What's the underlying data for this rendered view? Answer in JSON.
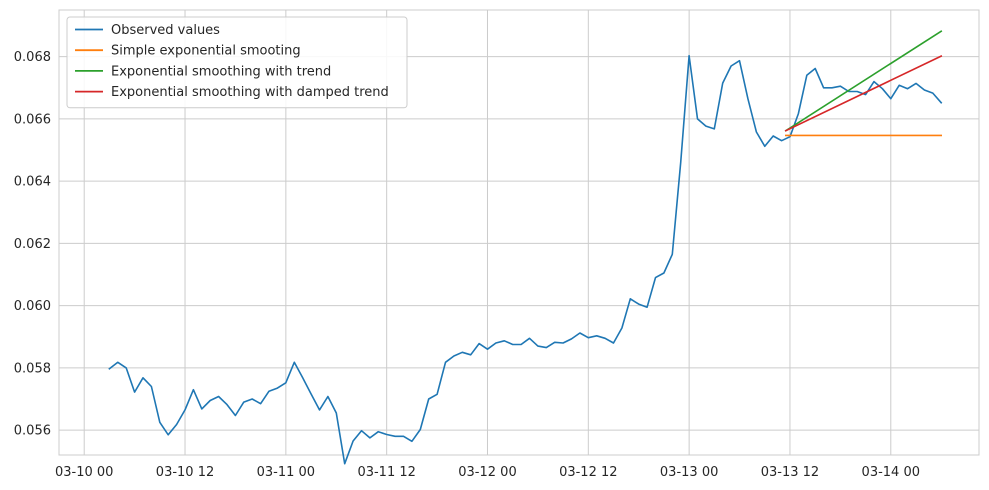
{
  "chart_data": {
    "type": "line",
    "title": "",
    "xlabel": "",
    "ylabel": "",
    "grid": true,
    "legend_position": "upper-left",
    "x_unit_note": "hours",
    "xlim": [
      -6,
      213
    ],
    "ylim": [
      0.0552,
      0.0695
    ],
    "x_ticks": [
      {
        "value": 0,
        "label": "03-10 00"
      },
      {
        "value": 24,
        "label": "03-10 12"
      },
      {
        "value": 48,
        "label": "03-11 00"
      },
      {
        "value": 72,
        "label": "03-11 12"
      },
      {
        "value": 96,
        "label": "03-12 00"
      },
      {
        "value": 120,
        "label": "03-12 12"
      },
      {
        "value": 144,
        "label": "03-13 00"
      },
      {
        "value": 168,
        "label": "03-13 12"
      },
      {
        "value": 192,
        "label": "03-14 00"
      }
    ],
    "y_ticks": [
      {
        "value": 0.056,
        "label": "0.056"
      },
      {
        "value": 0.058,
        "label": "0.058"
      },
      {
        "value": 0.06,
        "label": "0.060"
      },
      {
        "value": 0.062,
        "label": "0.062"
      },
      {
        "value": 0.064,
        "label": "0.064"
      },
      {
        "value": 0.066,
        "label": "0.066"
      },
      {
        "value": 0.068,
        "label": "0.068"
      }
    ],
    "series": [
      {
        "name": "Observed values",
        "color": "#1f77b4",
        "points": [
          [
            6,
            0.05797
          ],
          [
            8,
            0.05818
          ],
          [
            10,
            0.058
          ],
          [
            12,
            0.05722
          ],
          [
            14,
            0.05768
          ],
          [
            16,
            0.0574
          ],
          [
            18,
            0.05625
          ],
          [
            20,
            0.05585
          ],
          [
            22,
            0.05618
          ],
          [
            24,
            0.05665
          ],
          [
            26,
            0.0573
          ],
          [
            28,
            0.05668
          ],
          [
            30,
            0.05695
          ],
          [
            32,
            0.05708
          ],
          [
            34,
            0.05682
          ],
          [
            36,
            0.05647
          ],
          [
            38,
            0.0569
          ],
          [
            40,
            0.057
          ],
          [
            42,
            0.05685
          ],
          [
            44,
            0.05725
          ],
          [
            46,
            0.05735
          ],
          [
            48,
            0.05752
          ],
          [
            50,
            0.05818
          ],
          [
            52,
            0.05768
          ],
          [
            54,
            0.05716
          ],
          [
            56,
            0.05665
          ],
          [
            58,
            0.05708
          ],
          [
            60,
            0.05655
          ],
          [
            62,
            0.05492
          ],
          [
            64,
            0.05565
          ],
          [
            66,
            0.05598
          ],
          [
            68,
            0.05575
          ],
          [
            70,
            0.05595
          ],
          [
            72,
            0.05586
          ],
          [
            74,
            0.0558
          ],
          [
            76,
            0.0558
          ],
          [
            78,
            0.05564
          ],
          [
            80,
            0.05602
          ],
          [
            82,
            0.057
          ],
          [
            84,
            0.05715
          ],
          [
            86,
            0.05818
          ],
          [
            88,
            0.05838
          ],
          [
            90,
            0.0585
          ],
          [
            92,
            0.05842
          ],
          [
            94,
            0.05878
          ],
          [
            96,
            0.0586
          ],
          [
            98,
            0.0588
          ],
          [
            100,
            0.05887
          ],
          [
            102,
            0.05875
          ],
          [
            104,
            0.05875
          ],
          [
            106,
            0.05895
          ],
          [
            108,
            0.0587
          ],
          [
            110,
            0.05865
          ],
          [
            112,
            0.05882
          ],
          [
            114,
            0.0588
          ],
          [
            116,
            0.05893
          ],
          [
            118,
            0.05912
          ],
          [
            120,
            0.05897
          ],
          [
            122,
            0.05903
          ],
          [
            124,
            0.05895
          ],
          [
            126,
            0.0588
          ],
          [
            128,
            0.05928
          ],
          [
            130,
            0.06022
          ],
          [
            132,
            0.06005
          ],
          [
            134,
            0.05995
          ],
          [
            136,
            0.0609
          ],
          [
            138,
            0.06105
          ],
          [
            140,
            0.06165
          ],
          [
            142,
            0.0646
          ],
          [
            144,
            0.06803
          ],
          [
            146,
            0.066
          ],
          [
            148,
            0.06577
          ],
          [
            150,
            0.06568
          ],
          [
            152,
            0.06715
          ],
          [
            154,
            0.0677
          ],
          [
            156,
            0.06787
          ],
          [
            158,
            0.06665
          ],
          [
            160,
            0.06558
          ],
          [
            162,
            0.06512
          ],
          [
            164,
            0.06545
          ],
          [
            166,
            0.0653
          ],
          [
            168,
            0.06543
          ],
          [
            170,
            0.06617
          ],
          [
            172,
            0.0674
          ],
          [
            174,
            0.06762
          ],
          [
            176,
            0.067
          ],
          [
            178,
            0.067
          ],
          [
            180,
            0.06705
          ],
          [
            182,
            0.06688
          ],
          [
            184,
            0.06688
          ],
          [
            186,
            0.06678
          ],
          [
            188,
            0.0672
          ],
          [
            190,
            0.06697
          ],
          [
            192,
            0.06665
          ],
          [
            194,
            0.06708
          ],
          [
            196,
            0.06697
          ],
          [
            198,
            0.06714
          ],
          [
            200,
            0.06693
          ],
          [
            202,
            0.06683
          ],
          [
            204,
            0.06652
          ]
        ]
      },
      {
        "name": "Simple exponential smooting",
        "color": "#ff7f0e",
        "points": [
          [
            167,
            0.06547
          ],
          [
            204,
            0.06547
          ]
        ]
      },
      {
        "name": "Exponential smoothing with trend",
        "color": "#2ca02c",
        "points": [
          [
            167,
            0.06562
          ],
          [
            204,
            0.06882
          ]
        ]
      },
      {
        "name": "Exponential smoothing with damped trend",
        "color": "#d62728",
        "points": [
          [
            167,
            0.06562
          ],
          [
            204,
            0.06802
          ]
        ]
      }
    ]
  }
}
